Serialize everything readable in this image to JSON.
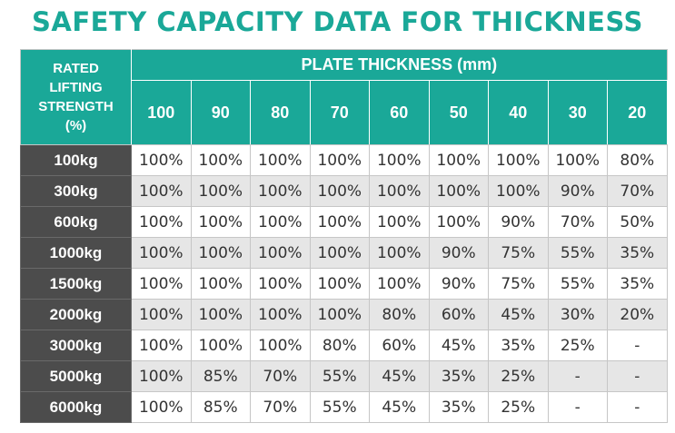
{
  "title": "SAFETY CAPACITY DATA FOR THICKNESS",
  "header": {
    "rated_lines": [
      "RATED",
      "LIFTING",
      "STRENGTH",
      "(%)"
    ],
    "plate_thickness": "PLATE THICKNESS (mm)",
    "thicknesses": [
      "100",
      "90",
      "80",
      "70",
      "60",
      "50",
      "40",
      "30",
      "20"
    ]
  },
  "rows": [
    {
      "label": "100kg",
      "values": [
        "100%",
        "100%",
        "100%",
        "100%",
        "100%",
        "100%",
        "100%",
        "100%",
        "80%"
      ]
    },
    {
      "label": "300kg",
      "values": [
        "100%",
        "100%",
        "100%",
        "100%",
        "100%",
        "100%",
        "100%",
        "90%",
        "70%"
      ]
    },
    {
      "label": "600kg",
      "values": [
        "100%",
        "100%",
        "100%",
        "100%",
        "100%",
        "100%",
        "90%",
        "70%",
        "50%"
      ]
    },
    {
      "label": "1000kg",
      "values": [
        "100%",
        "100%",
        "100%",
        "100%",
        "100%",
        "90%",
        "75%",
        "55%",
        "35%"
      ]
    },
    {
      "label": "1500kg",
      "values": [
        "100%",
        "100%",
        "100%",
        "100%",
        "100%",
        "90%",
        "75%",
        "55%",
        "35%"
      ]
    },
    {
      "label": "2000kg",
      "values": [
        "100%",
        "100%",
        "100%",
        "100%",
        "80%",
        "60%",
        "45%",
        "30%",
        "20%"
      ]
    },
    {
      "label": "3000kg",
      "values": [
        "100%",
        "100%",
        "100%",
        "80%",
        "60%",
        "45%",
        "35%",
        "25%",
        "-"
      ]
    },
    {
      "label": "5000kg",
      "values": [
        "100%",
        "85%",
        "70%",
        "55%",
        "45%",
        "35%",
        "25%",
        "-",
        "-"
      ]
    },
    {
      "label": "6000kg",
      "values": [
        "100%",
        "85%",
        "70%",
        "55%",
        "45%",
        "35%",
        "25%",
        "-",
        "-"
      ]
    }
  ],
  "colors": {
    "accent": "#1aa898",
    "row_label_bg": "#4c4c4c",
    "stripe": "#e6e6e6"
  }
}
